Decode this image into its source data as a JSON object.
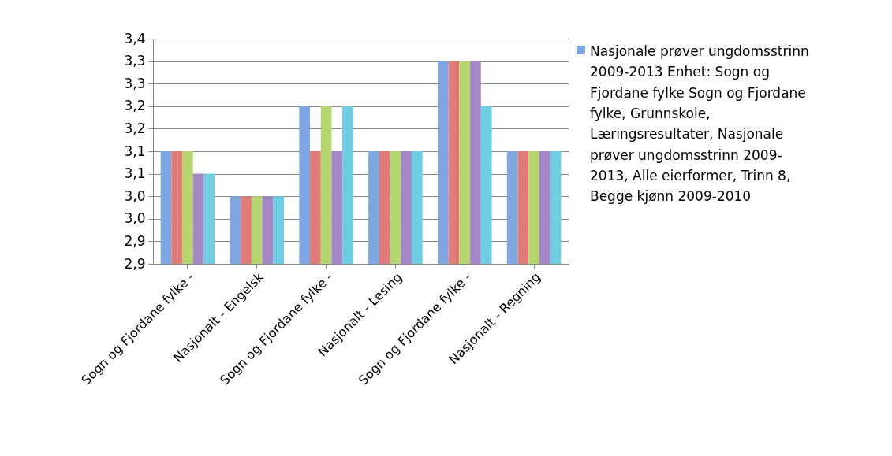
{
  "chart_data": {
    "type": "bar",
    "categories": [
      "Sogn og Fjordane fylke -",
      "Nasjonalt - Engelsk",
      "Sogn og Fjordane fylke -",
      "Nasjonalt - Lesing",
      "Sogn og Fjordane fylke -",
      "Nasjonalt - Regning"
    ],
    "series": [
      {
        "name": "Nasjonale prøver ungdomsstrinn 2009-2013 Enhet: Sogn og Fjordane fylke Sogn og Fjordane fylke, Grunnskole, Læringsresultater, Nasjonale prøver ungdomsstrinn 2009-2013, Alle eierformer, Trinn 8, Begge kjønn 2009-2010",
        "color": "#7ea6e0",
        "values": [
          3.1,
          3.0,
          3.2,
          3.1,
          3.3,
          3.1
        ]
      },
      {
        "color": "#e07b78",
        "values": [
          3.1,
          3.0,
          3.1,
          3.1,
          3.3,
          3.1
        ]
      },
      {
        "color": "#b5d66e",
        "values": [
          3.1,
          3.0,
          3.2,
          3.1,
          3.3,
          3.1
        ]
      },
      {
        "color": "#a487c7",
        "values": [
          3.05,
          3.0,
          3.1,
          3.1,
          3.3,
          3.1
        ]
      },
      {
        "color": "#6fcde3",
        "values": [
          3.05,
          3.0,
          3.2,
          3.1,
          3.2,
          3.1
        ]
      }
    ],
    "ylim": [
      2.85,
      3.35
    ],
    "yticks": [
      {
        "value": 2.85,
        "label": "2,9"
      },
      {
        "value": 2.9,
        "label": "2,9"
      },
      {
        "value": 2.95,
        "label": "3,0"
      },
      {
        "value": 3.0,
        "label": "3,0"
      },
      {
        "value": 3.05,
        "label": "3,1"
      },
      {
        "value": 3.1,
        "label": "3,1"
      },
      {
        "value": 3.15,
        "label": "3,2"
      },
      {
        "value": 3.2,
        "label": "3,2"
      },
      {
        "value": 3.25,
        "label": "3,3"
      },
      {
        "value": 3.3,
        "label": "3,3"
      },
      {
        "value": 3.35,
        "label": "3,4"
      }
    ],
    "grid": "y",
    "legend": "right"
  }
}
